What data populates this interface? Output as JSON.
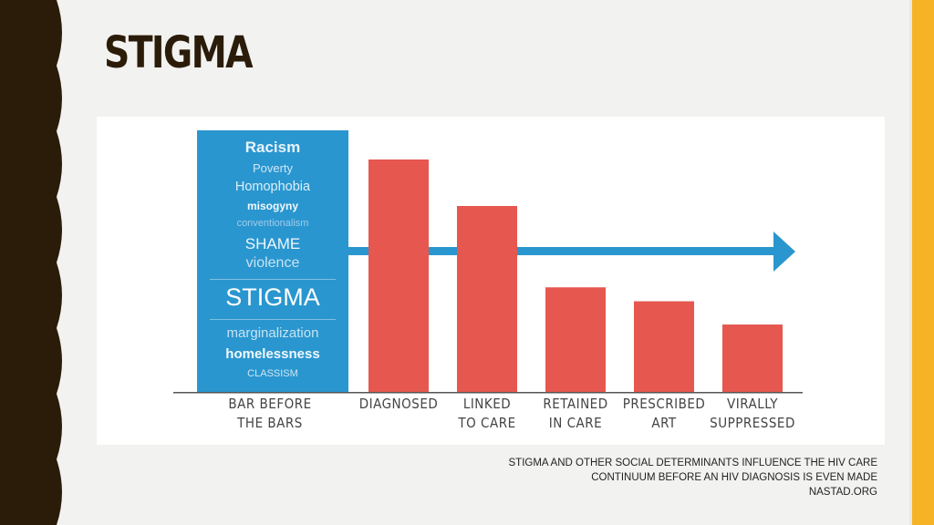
{
  "slide": {
    "title": "STIGMA",
    "caption_lines": [
      "STIGMA AND OTHER SOCIAL DETERMINANTS INFLUENCE THE HIV CARE",
      "CONTINUUM BEFORE AN HIV DIAGNOSIS IS EVEN MADE",
      "NASTAD.ORG"
    ],
    "colors": {
      "accent": "#f6b326",
      "sidebar": "#2b1c0a",
      "background": "#f2f2f0"
    }
  },
  "chart_data": {
    "type": "bar",
    "bar_before": {
      "label_lines": [
        "BAR BEFORE",
        "THE BARS"
      ],
      "words": [
        "Racism",
        "Poverty",
        "Homophobia",
        "misogyny",
        "conventionalism",
        "SHAME",
        "violence",
        "STIGMA",
        "marginalization",
        "homelessness",
        "CLASSISM"
      ],
      "color": "#2a96cf"
    },
    "categories": [
      [
        "DIAGNOSED"
      ],
      [
        "LINKED",
        "TO CARE"
      ],
      [
        "RETAINED",
        "IN CARE"
      ],
      [
        "PRESCRIBED",
        "ART"
      ],
      [
        "VIRALLY",
        "SUPPRESSED"
      ]
    ],
    "values": [
      100,
      80,
      45,
      39,
      29
    ],
    "ylim": [
      0,
      100
    ],
    "bar_color": "#e5574f",
    "arrow_color": "#2a96cf",
    "grid": false
  }
}
